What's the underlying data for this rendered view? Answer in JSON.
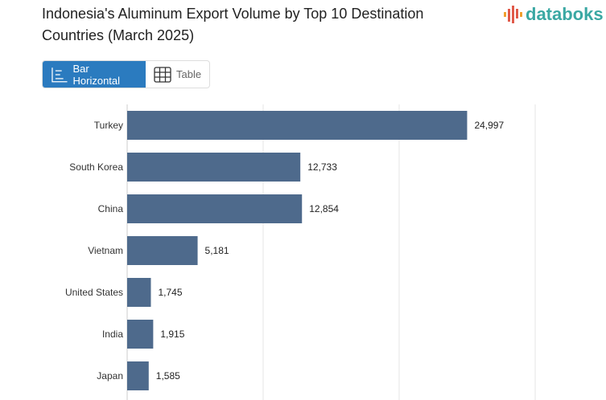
{
  "title": "Indonesia's Aluminum Export Volume by Top 10 Destination Countries (March 2025)",
  "logo": "databoks",
  "toggle": {
    "bar_label": "Bar Horizontal",
    "table_label": "Table"
  },
  "colors": {
    "bar": "#4e6a8c",
    "accent": "#2b7bbf",
    "logo": "#3aa8a3"
  },
  "chart_data": {
    "type": "bar",
    "orientation": "horizontal",
    "grid": true,
    "categories": [
      "Turkey",
      "South Korea",
      "China",
      "Vietnam",
      "United States",
      "India",
      "Japan"
    ],
    "values": [
      24997,
      12733,
      12854,
      5181,
      1745,
      1915,
      1585
    ],
    "labels": [
      "24,997",
      "12,733",
      "12,854",
      "5,181",
      "1,745",
      "1,915",
      "1,585"
    ],
    "xlim": [
      0,
      30000
    ]
  }
}
